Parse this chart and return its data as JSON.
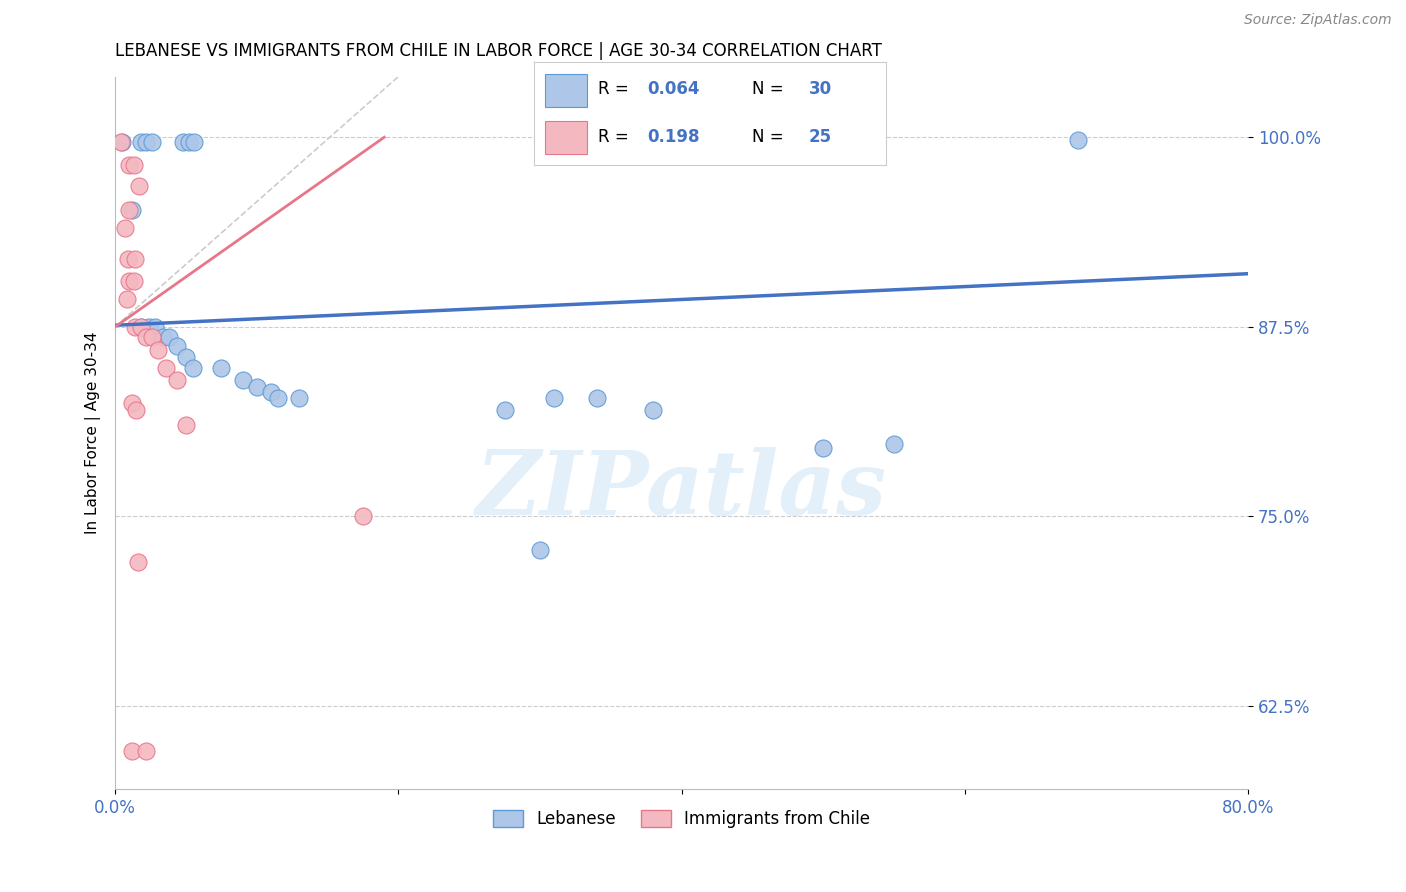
{
  "title": "LEBANESE VS IMMIGRANTS FROM CHILE IN LABOR FORCE | AGE 30-34 CORRELATION CHART",
  "source": "Source: ZipAtlas.com",
  "ylabel": "In Labor Force | Age 30-34",
  "xlim": [
    0.0,
    0.8
  ],
  "ylim": [
    0.57,
    1.04
  ],
  "ytick_labels": [
    "62.5%",
    "75.0%",
    "87.5%",
    "100.0%"
  ],
  "yticks": [
    0.625,
    0.75,
    0.875,
    1.0
  ],
  "xtick_positions": [
    0.0,
    0.2,
    0.4,
    0.6,
    0.8
  ],
  "xtick_labels": [
    "0.0%",
    "",
    "",
    "",
    "80.0%"
  ],
  "blue_color": "#aec6e8",
  "blue_edge": "#5b9bd5",
  "pink_color": "#f4b8c1",
  "pink_edge": "#e8768a",
  "blue_line_color": "#4472c4",
  "pink_line_color": "#e8768a",
  "r_blue": "0.064",
  "n_blue": "30",
  "r_pink": "0.198",
  "n_pink": "25",
  "blue_scatter": [
    [
      0.005,
      0.997
    ],
    [
      0.018,
      0.997
    ],
    [
      0.022,
      0.997
    ],
    [
      0.026,
      0.997
    ],
    [
      0.048,
      0.997
    ],
    [
      0.052,
      0.997
    ],
    [
      0.056,
      0.997
    ],
    [
      0.012,
      0.952
    ],
    [
      0.018,
      0.875
    ],
    [
      0.024,
      0.875
    ],
    [
      0.028,
      0.875
    ],
    [
      0.034,
      0.868
    ],
    [
      0.038,
      0.868
    ],
    [
      0.044,
      0.862
    ],
    [
      0.05,
      0.855
    ],
    [
      0.055,
      0.848
    ],
    [
      0.075,
      0.848
    ],
    [
      0.09,
      0.84
    ],
    [
      0.1,
      0.835
    ],
    [
      0.11,
      0.832
    ],
    [
      0.115,
      0.828
    ],
    [
      0.13,
      0.828
    ],
    [
      0.31,
      0.828
    ],
    [
      0.34,
      0.828
    ],
    [
      0.275,
      0.82
    ],
    [
      0.38,
      0.82
    ],
    [
      0.5,
      0.795
    ],
    [
      0.55,
      0.798
    ],
    [
      0.3,
      0.728
    ],
    [
      0.68,
      0.998
    ]
  ],
  "pink_scatter": [
    [
      0.004,
      0.997
    ],
    [
      0.01,
      0.982
    ],
    [
      0.013,
      0.982
    ],
    [
      0.017,
      0.968
    ],
    [
      0.01,
      0.952
    ],
    [
      0.007,
      0.94
    ],
    [
      0.009,
      0.92
    ],
    [
      0.014,
      0.92
    ],
    [
      0.01,
      0.905
    ],
    [
      0.013,
      0.905
    ],
    [
      0.008,
      0.893
    ],
    [
      0.014,
      0.875
    ],
    [
      0.018,
      0.875
    ],
    [
      0.022,
      0.868
    ],
    [
      0.026,
      0.868
    ],
    [
      0.03,
      0.86
    ],
    [
      0.036,
      0.848
    ],
    [
      0.044,
      0.84
    ],
    [
      0.012,
      0.825
    ],
    [
      0.015,
      0.82
    ],
    [
      0.05,
      0.81
    ],
    [
      0.175,
      0.75
    ],
    [
      0.016,
      0.72
    ],
    [
      0.012,
      0.595
    ],
    [
      0.022,
      0.595
    ]
  ],
  "watermark": "ZIPatlas",
  "title_fontsize": 12,
  "axis_label_color": "#4472c4",
  "background_color": "#ffffff",
  "ref_line_x": [
    0.0,
    0.2
  ],
  "ref_line_y": [
    0.875,
    1.04
  ]
}
